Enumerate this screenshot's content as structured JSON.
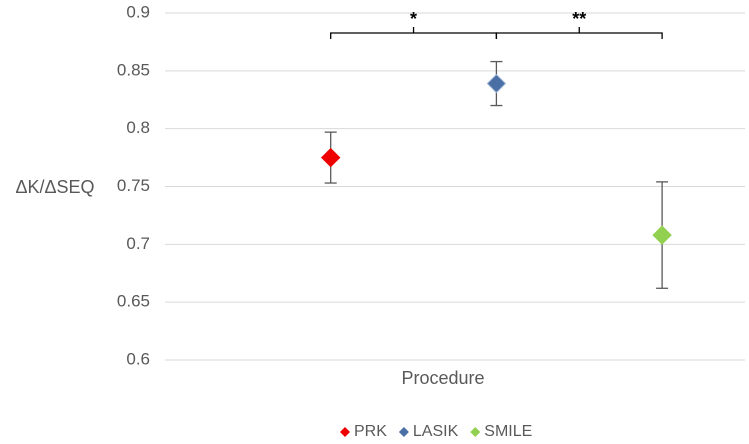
{
  "chart_data": {
    "type": "scatter",
    "y_label": "ΔK/ΔSEQ",
    "x_label": "Procedure",
    "series": [
      {
        "name": "PRK",
        "color": "#ee0000",
        "values": [
          0.775
        ],
        "errors": [
          0.022
        ]
      },
      {
        "name": "LASIK",
        "color": "#4a6fa5",
        "values": [
          0.839
        ],
        "errors": [
          0.019
        ]
      },
      {
        "name": "SMILE",
        "color": "#92d050",
        "values": [
          0.708
        ],
        "errors": [
          0.046
        ]
      }
    ],
    "annotations": [
      "*",
      "**"
    ],
    "ylim": [
      0.6,
      0.9
    ],
    "yticks": [
      0.6,
      0.65,
      0.7,
      0.75,
      0.8,
      0.85,
      0.9
    ],
    "grid": true
  }
}
